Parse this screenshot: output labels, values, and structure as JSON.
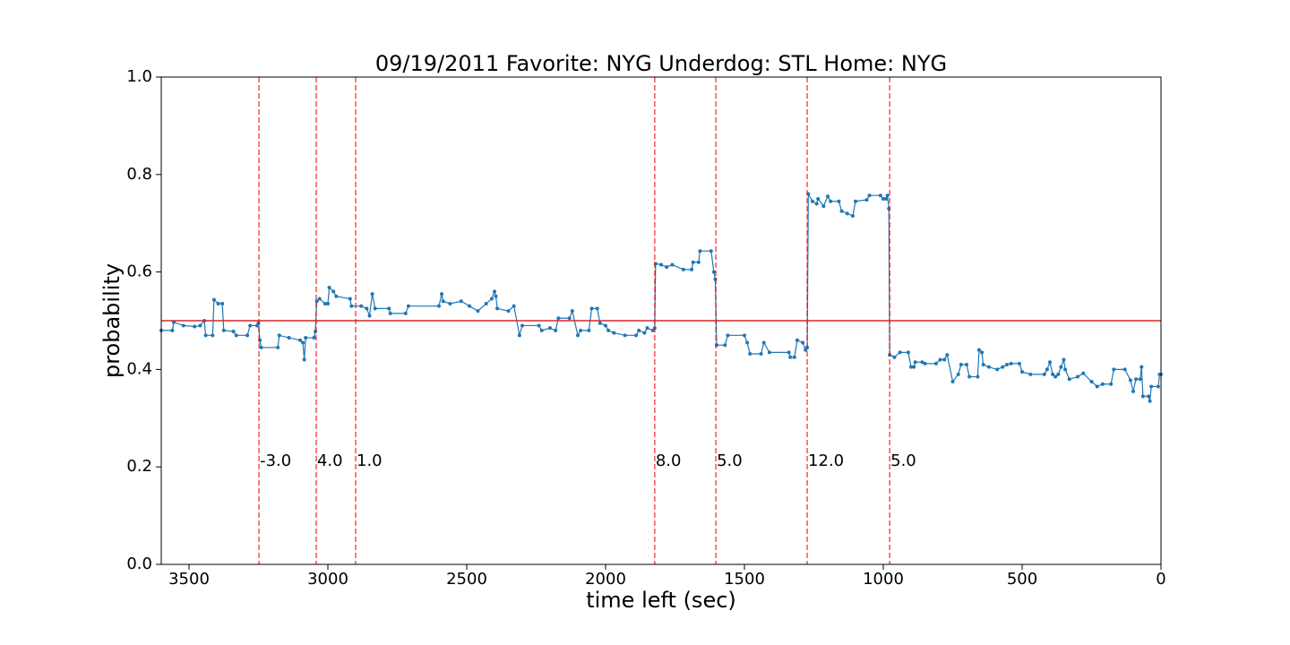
{
  "chart_data": {
    "type": "line",
    "title": "09/19/2011 Favorite: NYG Underdog: STL Home: NYG",
    "x_label": "time left (sec)",
    "y_label": "probability",
    "xlim": [
      3600,
      0
    ],
    "ylim": [
      0,
      1
    ],
    "xticks": [
      3500,
      3000,
      2500,
      2000,
      1500,
      1000,
      500,
      0
    ],
    "yticks": [
      {
        "value": 0,
        "label": "0.0"
      },
      {
        "value": 0.2,
        "label": "0.2"
      },
      {
        "value": 0.4,
        "label": "0.4"
      },
      {
        "value": 0.6,
        "label": "0.6"
      },
      {
        "value": 0.8,
        "label": "0.8"
      },
      {
        "value": 1,
        "label": "1.0"
      }
    ],
    "hline": {
      "value": 0.5,
      "color": "#d62728"
    },
    "events_color": "#ff0000",
    "events": [
      {
        "x": 3248,
        "label": "-3.0"
      },
      {
        "x": 3042,
        "label": "4.0"
      },
      {
        "x": 2900,
        "label": "1.0"
      },
      {
        "x": 1823,
        "label": "8.0"
      },
      {
        "x": 1603,
        "label": "5.0"
      },
      {
        "x": 1274,
        "label": "12.0"
      },
      {
        "x": 977,
        "label": "5.0"
      }
    ],
    "series": [
      {
        "color": "#1f77b4",
        "x": [
          3600,
          3560,
          3555,
          3520,
          3480,
          3460,
          3445,
          3440,
          3415,
          3410,
          3395,
          3380,
          3375,
          3340,
          3330,
          3290,
          3280,
          3255,
          3250,
          3245,
          3240,
          3180,
          3175,
          3140,
          3100,
          3090,
          3085,
          3080,
          3050,
          3045,
          3040,
          3030,
          3010,
          3000,
          2995,
          2980,
          2970,
          2920,
          2915,
          2880,
          2860,
          2850,
          2840,
          2830,
          2780,
          2775,
          2720,
          2710,
          2600,
          2590,
          2585,
          2560,
          2520,
          2490,
          2460,
          2430,
          2410,
          2400,
          2395,
          2390,
          2350,
          2330,
          2310,
          2300,
          2240,
          2230,
          2200,
          2180,
          2170,
          2130,
          2120,
          2100,
          2090,
          2060,
          2050,
          2030,
          2020,
          2000,
          1990,
          1970,
          1930,
          1890,
          1880,
          1860,
          1850,
          1830,
          1823,
          1820,
          1800,
          1780,
          1760,
          1720,
          1690,
          1685,
          1665,
          1660,
          1620,
          1610,
          1605,
          1600,
          1570,
          1560,
          1500,
          1490,
          1480,
          1440,
          1430,
          1410,
          1340,
          1335,
          1320,
          1310,
          1290,
          1280,
          1274,
          1270,
          1255,
          1240,
          1235,
          1215,
          1200,
          1190,
          1160,
          1150,
          1130,
          1110,
          1100,
          1060,
          1050,
          1010,
          1000,
          990,
          985,
          980,
          977,
          960,
          940,
          910,
          900,
          890,
          885,
          860,
          850,
          810,
          795,
          780,
          770,
          750,
          730,
          720,
          700,
          690,
          660,
          655,
          645,
          640,
          620,
          590,
          570,
          555,
          540,
          510,
          500,
          470,
          420,
          410,
          400,
          390,
          380,
          370,
          360,
          350,
          345,
          330,
          300,
          280,
          250,
          230,
          210,
          180,
          170,
          130,
          110,
          100,
          90,
          75,
          70,
          65,
          45,
          40,
          35,
          10,
          5,
          0
        ],
        "values": [
          0.48,
          0.48,
          0.497,
          0.49,
          0.488,
          0.49,
          0.5,
          0.47,
          0.47,
          0.543,
          0.535,
          0.535,
          0.48,
          0.478,
          0.47,
          0.47,
          0.49,
          0.49,
          0.495,
          0.46,
          0.445,
          0.445,
          0.47,
          0.465,
          0.46,
          0.455,
          0.42,
          0.465,
          0.465,
          0.478,
          0.54,
          0.545,
          0.535,
          0.535,
          0.568,
          0.56,
          0.55,
          0.545,
          0.53,
          0.53,
          0.525,
          0.51,
          0.555,
          0.525,
          0.525,
          0.515,
          0.515,
          0.53,
          0.53,
          0.555,
          0.54,
          0.535,
          0.54,
          0.53,
          0.52,
          0.535,
          0.545,
          0.56,
          0.55,
          0.525,
          0.52,
          0.53,
          0.47,
          0.49,
          0.49,
          0.48,
          0.485,
          0.48,
          0.505,
          0.505,
          0.52,
          0.47,
          0.48,
          0.48,
          0.525,
          0.525,
          0.495,
          0.49,
          0.48,
          0.475,
          0.47,
          0.47,
          0.48,
          0.475,
          0.485,
          0.48,
          0.485,
          0.617,
          0.615,
          0.61,
          0.615,
          0.605,
          0.605,
          0.62,
          0.62,
          0.643,
          0.643,
          0.6,
          0.585,
          0.45,
          0.45,
          0.47,
          0.47,
          0.455,
          0.432,
          0.432,
          0.455,
          0.435,
          0.435,
          0.425,
          0.425,
          0.46,
          0.455,
          0.44,
          0.445,
          0.76,
          0.745,
          0.74,
          0.75,
          0.735,
          0.755,
          0.745,
          0.745,
          0.725,
          0.72,
          0.715,
          0.745,
          0.748,
          0.757,
          0.757,
          0.75,
          0.75,
          0.757,
          0.73,
          0.43,
          0.425,
          0.435,
          0.435,
          0.405,
          0.405,
          0.415,
          0.415,
          0.412,
          0.412,
          0.42,
          0.42,
          0.43,
          0.375,
          0.39,
          0.41,
          0.41,
          0.385,
          0.385,
          0.44,
          0.435,
          0.41,
          0.405,
          0.4,
          0.405,
          0.41,
          0.412,
          0.412,
          0.395,
          0.39,
          0.39,
          0.4,
          0.415,
          0.39,
          0.385,
          0.39,
          0.405,
          0.42,
          0.4,
          0.38,
          0.385,
          0.392,
          0.375,
          0.365,
          0.37,
          0.37,
          0.4,
          0.4,
          0.378,
          0.355,
          0.38,
          0.38,
          0.405,
          0.345,
          0.345,
          0.335,
          0.365,
          0.365,
          0.39,
          0.39
        ]
      }
    ]
  }
}
